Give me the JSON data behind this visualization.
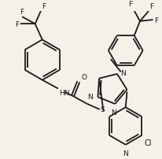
{
  "bg_color": "#f5f0e8",
  "bond_color": "#1a1a1a",
  "bond_lw": 1.3,
  "font_size": 6.5,
  "fig_width": 2.07,
  "fig_height": 2.03,
  "dpi": 100,
  "xlim": [
    0,
    207
  ],
  "ylim": [
    0,
    203
  ]
}
